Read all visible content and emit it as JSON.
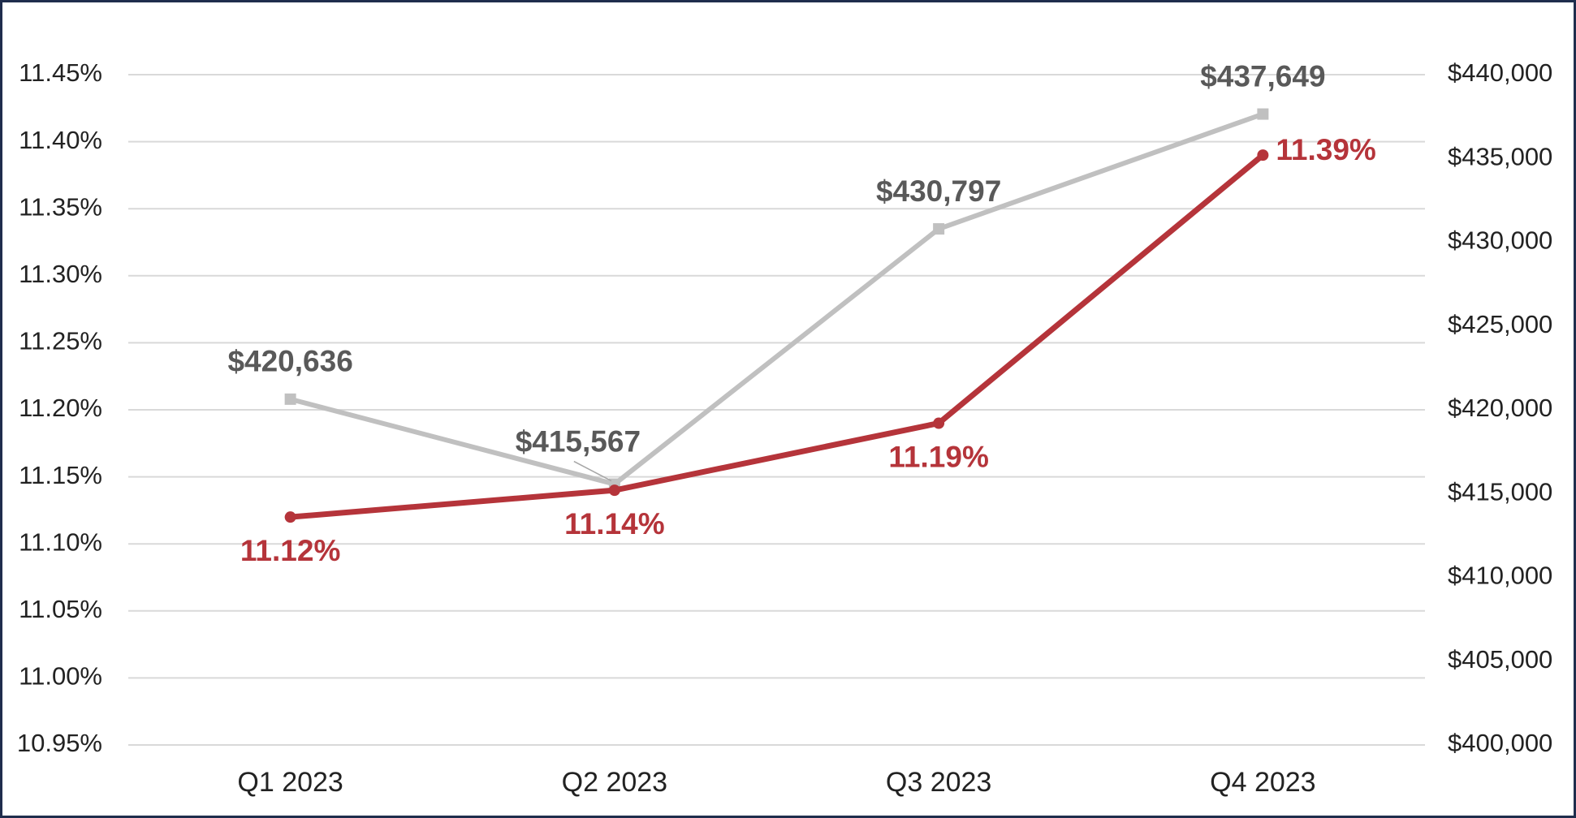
{
  "chart_data": {
    "type": "line",
    "categories": [
      "Q1 2023",
      "Q2 2023",
      "Q3 2023",
      "Q4 2023"
    ],
    "series": [
      {
        "color": "#c0c0c0",
        "axis": "y2",
        "values": [
          420636,
          415567,
          430797,
          437649
        ],
        "value_labels": [
          "$420,636",
          "$415,567",
          "$430,797",
          "$437,649"
        ]
      },
      {
        "color": "#b5343a",
        "values": [
          11.12,
          11.14,
          11.19,
          11.39
        ],
        "value_labels": [
          "11.12%",
          "11.14%",
          "11.19%",
          "11.39%"
        ]
      }
    ],
    "ylim": [
      10.95,
      11.45
    ],
    "yticks": [
      {
        "value": 10.95,
        "label": "10.95%"
      },
      {
        "value": 11.0,
        "label": "11.00%"
      },
      {
        "value": 11.05,
        "label": "11.05%"
      },
      {
        "value": 11.1,
        "label": "11.10%"
      },
      {
        "value": 11.15,
        "label": "11.15%"
      },
      {
        "value": 11.2,
        "label": "11.20%"
      },
      {
        "value": 11.25,
        "label": "11.25%"
      },
      {
        "value": 11.3,
        "label": "11.30%"
      },
      {
        "value": 11.35,
        "label": "11.35%"
      },
      {
        "value": 11.4,
        "label": "11.40%"
      },
      {
        "value": 11.45,
        "label": "11.45%"
      }
    ],
    "y2lim": [
      400000,
      440000
    ],
    "y2ticks": [
      {
        "value": 400000,
        "label": "$400,000"
      },
      {
        "value": 405000,
        "label": "$405,000"
      },
      {
        "value": 410000,
        "label": "$410,000"
      },
      {
        "value": 415000,
        "label": "$415,000"
      },
      {
        "value": 420000,
        "label": "$420,000"
      },
      {
        "value": 425000,
        "label": "$425,000"
      },
      {
        "value": 430000,
        "label": "$430,000"
      },
      {
        "value": 435000,
        "label": "$435,000"
      },
      {
        "value": 440000,
        "label": "$440,000"
      }
    ],
    "grid": true
  }
}
